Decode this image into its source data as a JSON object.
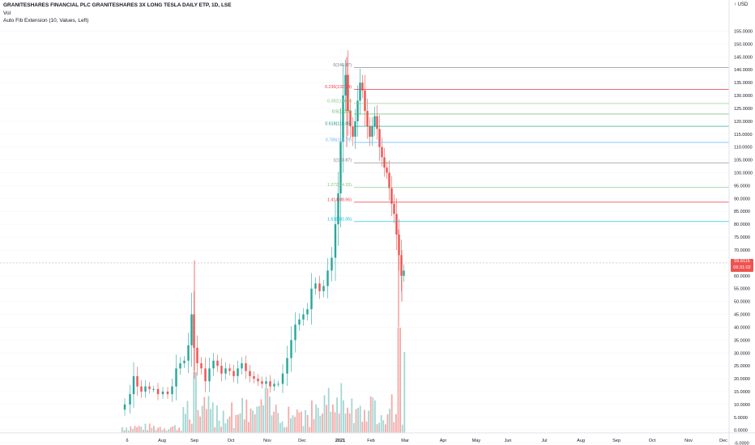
{
  "header": {
    "title": "GRANITESHARES FINANCIAL PLC GRANITESHARES 3X LONG TESLA DAILY ETP, 1D, LSE",
    "vol_label": "Vol",
    "indicator_label": "Auto Fib Extension (10, Values, Left)"
  },
  "price_axis": {
    "currency": "USD",
    "ticks": [
      "155.0000",
      "150.0000",
      "145.0000",
      "140.0000",
      "135.0000",
      "130.0000",
      "125.0000",
      "120.0000",
      "115.0000",
      "110.0000",
      "105.0000",
      "100.0000",
      "95.0000",
      "90.0000",
      "85.0000",
      "80.0000",
      "75.0000",
      "70.0000",
      "65.0000",
      "60.0000",
      "55.0000",
      "50.0000",
      "45.0000",
      "40.0000",
      "35.0000",
      "30.0000",
      "25.0000",
      "20.0000",
      "15.0000",
      "10.0000",
      "5.0000",
      "0.0000",
      "-5.0000"
    ],
    "last_price": "59.8115",
    "countdown": "06:31:02"
  },
  "time_axis": {
    "labels": [
      "6",
      "Aug",
      "Sep",
      "Oct",
      "Nov",
      "Dec",
      "2021",
      "Feb",
      "Mar",
      "Apr",
      "May",
      "Jun",
      "Jul",
      "Aug",
      "Sep",
      "Oct",
      "Nov",
      "Dec"
    ]
  },
  "colors": {
    "up": "#26a69a",
    "down": "#ef5350",
    "vol_up": "#a5d6d2",
    "vol_down": "#f5aaa8",
    "fib_0": "#787b86",
    "fib_236": "#f23645",
    "fib_382": "#81c784",
    "fib_5": "#4caf50",
    "fib_618": "#089981",
    "fib_786": "#64b5f6",
    "fib_1": "#787b86",
    "fib_1272": "#81c784",
    "fib_1414": "#f23645",
    "fib_1618": "#00bcd4"
  },
  "chart_data": {
    "type": "candlestick",
    "fib_levels": [
      {
        "label": "0(140.87)",
        "price": 140.87,
        "color_key": "fib_0"
      },
      {
        "label": "0.236(132.34)",
        "price": 132.34,
        "color_key": "fib_236"
      },
      {
        "label": "0.382(126.9)",
        "price": 126.9,
        "color_key": "fib_382"
      },
      {
        "label": "0.5(122.8)",
        "price": 122.8,
        "color_key": "fib_5"
      },
      {
        "label": "0.618(118.05)",
        "price": 118.05,
        "color_key": "fib_618"
      },
      {
        "label": "0.786(111.79)",
        "price": 111.79,
        "color_key": "fib_786"
      },
      {
        "label": "1(103.87)",
        "price": 103.87,
        "color_key": "fib_1"
      },
      {
        "label": "1.272(94.33)",
        "price": 94.33,
        "color_key": "fib_1272"
      },
      {
        "label": "1.414(88.56)",
        "price": 88.56,
        "color_key": "fib_1414"
      },
      {
        "label": "1.618(81.05)",
        "price": 81.05,
        "color_key": "fib_1618"
      }
    ]
  }
}
